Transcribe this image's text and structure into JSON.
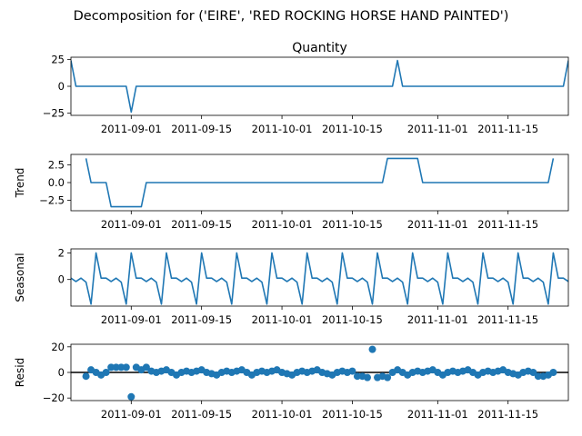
{
  "figure": {
    "suptitle": "Decomposition for ('EIRE', 'RED ROCKING HORSE HAND PAINTED')",
    "line_color": "#1f77b4"
  },
  "chart_data": [
    {
      "type": "line",
      "title": "Quantity",
      "ylabel": "",
      "xlim": [
        "2011-08-20",
        "2011-11-27"
      ],
      "ylim": [
        -27,
        27
      ],
      "yticks": [
        25,
        0,
        -25
      ],
      "ytick_labels": [
        "25",
        "0",
        "−25"
      ],
      "xticks": [
        "2011-09-01",
        "2011-09-15",
        "2011-10-01",
        "2011-10-15",
        "2011-11-01",
        "2011-11-15"
      ],
      "xtick_labels": [
        "2011-09-01",
        "2011-09-15",
        "2011-10-01",
        "2011-10-15",
        "2011-11-01",
        "2011-11-15"
      ],
      "x": [
        "2011-08-20",
        "2011-08-21",
        "2011-08-31",
        "2011-09-01",
        "2011-09-02",
        "2011-10-23",
        "2011-10-24",
        "2011-10-25",
        "2011-11-26",
        "2011-11-27"
      ],
      "y": [
        24,
        0,
        0,
        -24,
        0,
        0,
        24,
        0,
        0,
        24
      ]
    },
    {
      "type": "line",
      "title": "",
      "ylabel": "Trend",
      "xlim": [
        "2011-08-20",
        "2011-11-27"
      ],
      "ylim": [
        -4,
        4
      ],
      "yticks": [
        2.5,
        0.0,
        -2.5
      ],
      "ytick_labels": [
        "2.5",
        "0.0",
        "−2.5"
      ],
      "xticks": [
        "2011-09-01",
        "2011-09-15",
        "2011-10-01",
        "2011-10-15",
        "2011-11-01",
        "2011-11-15"
      ],
      "xtick_labels": [
        "2011-09-01",
        "2011-09-15",
        "2011-10-01",
        "2011-10-15",
        "2011-11-01",
        "2011-11-15"
      ],
      "x": [
        "2011-08-23",
        "2011-08-24",
        "2011-08-27",
        "2011-08-28",
        "2011-09-03",
        "2011-09-04",
        "2011-10-21",
        "2011-10-22",
        "2011-10-28",
        "2011-10-29",
        "2011-11-23",
        "2011-11-24"
      ],
      "y": [
        3.43,
        0,
        0,
        -3.43,
        -3.43,
        0,
        0,
        3.43,
        3.43,
        0,
        0,
        3.43
      ]
    },
    {
      "type": "line",
      "title": "",
      "ylabel": "Seasonal",
      "xlim": [
        "2011-08-20",
        "2011-11-27"
      ],
      "ylim": [
        -2,
        2.3
      ],
      "yticks": [
        2,
        0
      ],
      "ytick_labels": [
        "2",
        "0"
      ],
      "xticks": [
        "2011-09-01",
        "2011-09-15",
        "2011-10-01",
        "2011-10-15",
        "2011-11-01",
        "2011-11-15"
      ],
      "xtick_labels": [
        "2011-09-01",
        "2011-09-15",
        "2011-10-01",
        "2011-10-15",
        "2011-11-01",
        "2011-11-15"
      ],
      "period_days": 7,
      "start": "2011-08-20",
      "pattern": [
        0.1,
        -0.15,
        0.1,
        -0.2,
        -1.85,
        2.0,
        0.1
      ]
    },
    {
      "type": "scatter",
      "title": "",
      "ylabel": "Resid",
      "xlim": [
        "2011-08-20",
        "2011-11-27"
      ],
      "ylim": [
        -22,
        22
      ],
      "yticks": [
        20,
        0,
        -20
      ],
      "ytick_labels": [
        "20",
        "0",
        "−20"
      ],
      "xticks": [
        "2011-09-01",
        "2011-09-15",
        "2011-10-01",
        "2011-10-15",
        "2011-11-01",
        "2011-11-15"
      ],
      "xtick_labels": [
        "2011-09-01",
        "2011-09-15",
        "2011-10-01",
        "2011-10-15",
        "2011-11-01",
        "2011-11-15"
      ],
      "baseline": 0,
      "x": [
        "2011-08-23",
        "2011-08-24",
        "2011-08-25",
        "2011-08-26",
        "2011-08-27",
        "2011-08-28",
        "2011-08-29",
        "2011-08-30",
        "2011-08-31",
        "2011-09-01",
        "2011-09-02",
        "2011-09-03",
        "2011-09-04",
        "2011-09-05",
        "2011-09-06",
        "2011-09-07",
        "2011-09-08",
        "2011-09-09",
        "2011-09-10",
        "2011-09-11",
        "2011-09-12",
        "2011-09-13",
        "2011-09-14",
        "2011-09-15",
        "2011-09-16",
        "2011-09-17",
        "2011-09-18",
        "2011-09-19",
        "2011-09-20",
        "2011-09-21",
        "2011-09-22",
        "2011-09-23",
        "2011-09-24",
        "2011-09-25",
        "2011-09-26",
        "2011-09-27",
        "2011-09-28",
        "2011-09-29",
        "2011-09-30",
        "2011-10-01",
        "2011-10-02",
        "2011-10-03",
        "2011-10-04",
        "2011-10-05",
        "2011-10-06",
        "2011-10-07",
        "2011-10-08",
        "2011-10-09",
        "2011-10-10",
        "2011-10-11",
        "2011-10-12",
        "2011-10-13",
        "2011-10-14",
        "2011-10-15",
        "2011-10-16",
        "2011-10-17",
        "2011-10-18",
        "2011-10-19",
        "2011-10-20",
        "2011-10-21",
        "2011-10-22",
        "2011-10-23",
        "2011-10-24",
        "2011-10-25",
        "2011-10-26",
        "2011-10-27",
        "2011-10-28",
        "2011-10-29",
        "2011-10-30",
        "2011-10-31",
        "2011-11-01",
        "2011-11-02",
        "2011-11-03",
        "2011-11-04",
        "2011-11-05",
        "2011-11-06",
        "2011-11-07",
        "2011-11-08",
        "2011-11-09",
        "2011-11-10",
        "2011-11-11",
        "2011-11-12",
        "2011-11-13",
        "2011-11-14",
        "2011-11-15",
        "2011-11-16",
        "2011-11-17",
        "2011-11-18",
        "2011-11-19",
        "2011-11-20",
        "2011-11-21",
        "2011-11-22",
        "2011-11-23",
        "2011-11-24"
      ],
      "y": [
        -3,
        2,
        0,
        -2,
        0,
        4,
        4,
        4,
        4,
        -19,
        4,
        2,
        4,
        1,
        0,
        1,
        2,
        0,
        -2,
        0,
        1,
        0,
        1,
        2,
        0,
        -1,
        -2,
        0,
        1,
        0,
        1,
        2,
        0,
        -2,
        0,
        1,
        0,
        1,
        2,
        0,
        -1,
        -2,
        0,
        1,
        0,
        1,
        2,
        0,
        -1,
        -2,
        0,
        1,
        0,
        1,
        -3,
        -3,
        -4,
        18,
        -4,
        -3,
        -4,
        0,
        2,
        0,
        -2,
        0,
        1,
        0,
        1,
        2,
        0,
        -2,
        0,
        1,
        0,
        1,
        2,
        0,
        -2,
        0,
        1,
        0,
        1,
        2,
        0,
        -1,
        -2,
        0,
        1,
        0,
        -3,
        -3,
        -2,
        0
      ]
    }
  ]
}
